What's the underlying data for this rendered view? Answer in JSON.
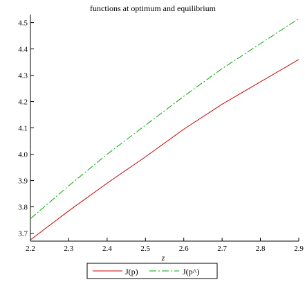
{
  "chart_data": {
    "type": "line",
    "title": "functions at optimum and equilibrium",
    "xlabel": "z",
    "ylabel": "",
    "xlim": [
      2.2,
      2.9
    ],
    "ylim": [
      3.67,
      4.52
    ],
    "x_ticks": [
      "2.2",
      "2.3",
      "2.4",
      "2.5",
      "2.6",
      "2.7",
      "2.8",
      "2.9"
    ],
    "y_ticks": [
      "3.7",
      "3.8",
      "3.9",
      "4.0",
      "4.1",
      "4.2",
      "4.3",
      "4.4",
      "4.5"
    ],
    "grid": false,
    "legend_position": "bottom-center",
    "series": [
      {
        "name": "J(p)",
        "color": "#cc0000",
        "dash": "solid",
        "x": [
          2.2,
          2.3,
          2.4,
          2.5,
          2.6,
          2.7,
          2.8,
          2.9
        ],
        "values": [
          3.675,
          3.785,
          3.89,
          3.99,
          4.095,
          4.19,
          4.275,
          4.36
        ]
      },
      {
        "name": "J(p^)",
        "color": "#00aa00",
        "dash": "dashdot",
        "x": [
          2.2,
          2.3,
          2.4,
          2.5,
          2.6,
          2.7,
          2.8,
          2.9
        ],
        "values": [
          3.755,
          3.88,
          4.0,
          4.11,
          4.22,
          4.325,
          4.42,
          4.515
        ]
      }
    ]
  }
}
